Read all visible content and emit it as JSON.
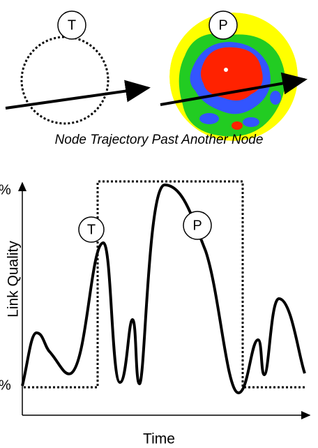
{
  "top": {
    "left_label": "T",
    "right_label": "P",
    "caption": "Node Trajectory Past Another Node"
  },
  "chart": {
    "y_axis_label": "Link Quality",
    "x_axis_label": "Time",
    "y_top_label": "%",
    "y_bottom_label": "%",
    "marker_t": "T",
    "marker_p": "P"
  }
}
